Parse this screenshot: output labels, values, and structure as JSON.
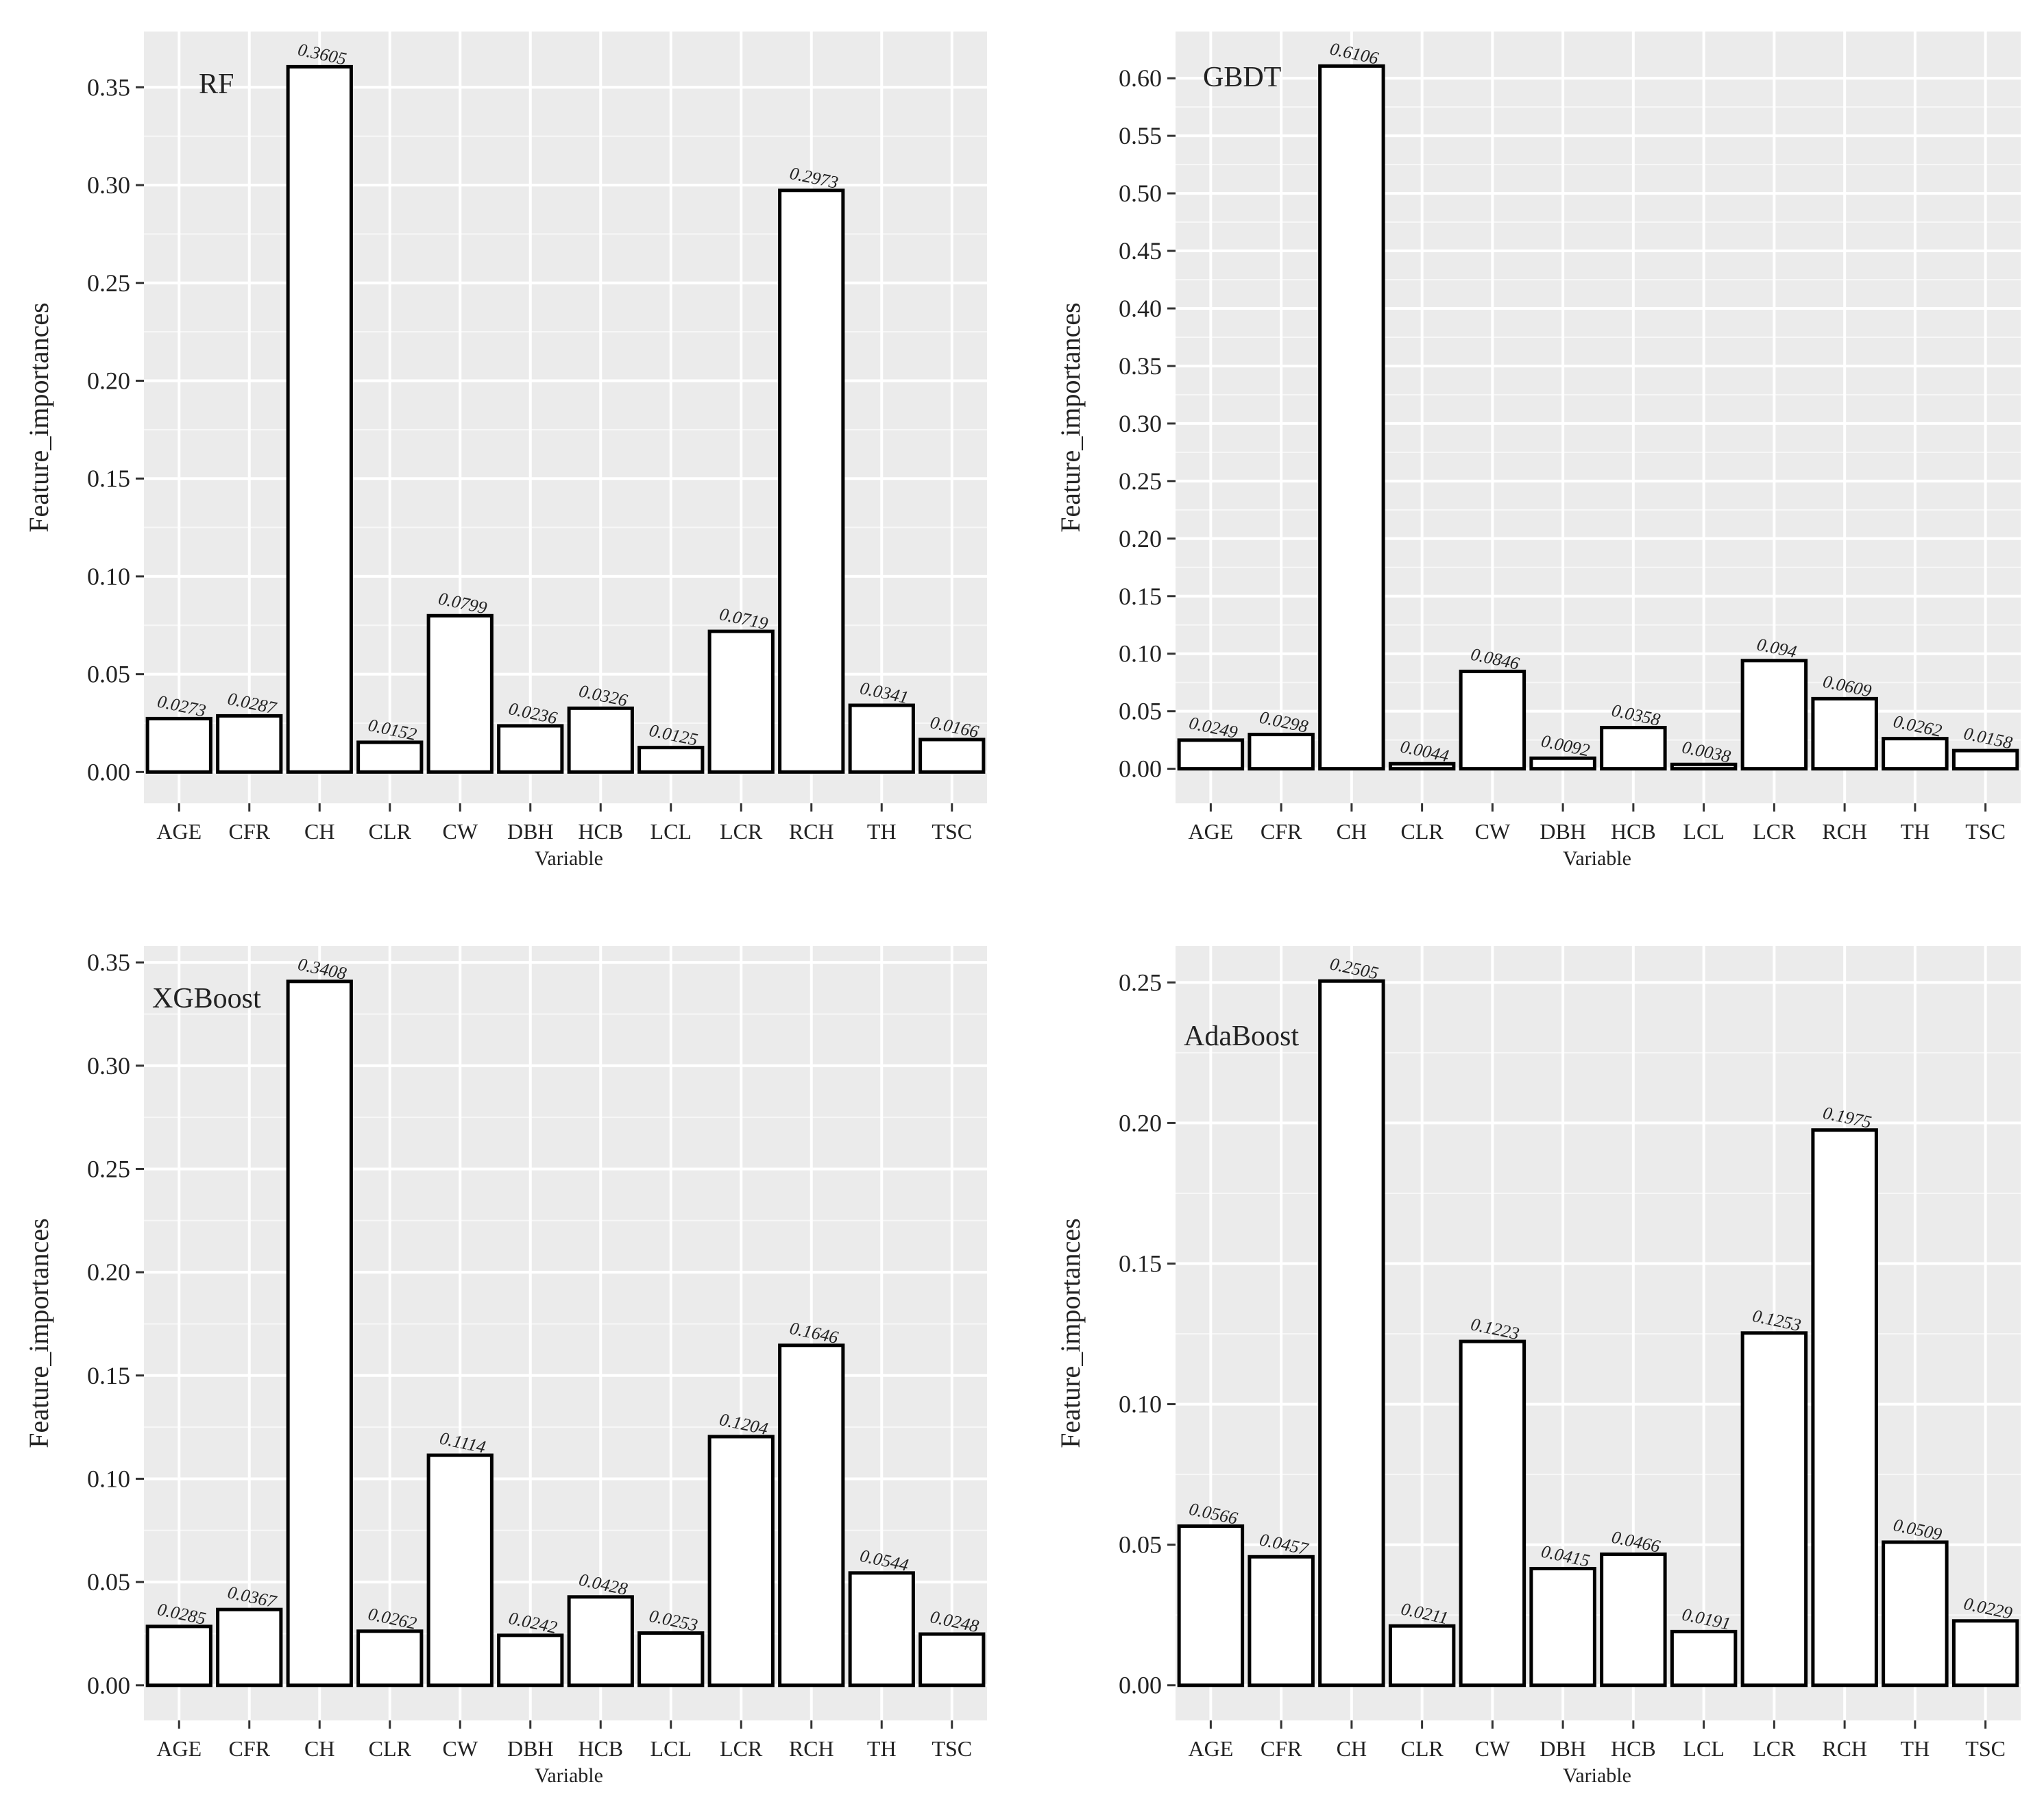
{
  "chart_data": [
    {
      "type": "bar",
      "title": "RF",
      "xlabel": "Variable",
      "ylabel": "Feature_importances",
      "categories": [
        "AGE",
        "CFR",
        "CH",
        "CLR",
        "CW",
        "DBH",
        "HCB",
        "LCL",
        "LCR",
        "RCH",
        "TH",
        "TSC"
      ],
      "values": [
        0.0273,
        0.0287,
        0.3605,
        0.0152,
        0.0799,
        0.0236,
        0.0326,
        0.0125,
        0.0719,
        0.2973,
        0.0341,
        0.0166
      ],
      "value_labels": [
        "0.0273",
        "0.0287",
        "0.3605",
        "0.0152",
        "0.0799",
        "0.0236",
        "0.0326",
        "0.0125",
        "0.0719",
        "0.2973",
        "0.0341",
        "0.0166"
      ],
      "ylim": [
        -0.016,
        0.3785
      ],
      "yticks": [
        0.0,
        0.05,
        0.1,
        0.15,
        0.2,
        0.25,
        0.3,
        0.35
      ],
      "ytick_labels": [
        "0.00",
        "0.05",
        "0.10",
        "0.15",
        "0.20",
        "0.25",
        "0.30",
        "0.35"
      ],
      "legend": "none",
      "grid": true
    },
    {
      "type": "bar",
      "title": "GBDT",
      "xlabel": "Variable",
      "ylabel": "Feature_importances",
      "categories": [
        "AGE",
        "CFR",
        "CH",
        "CLR",
        "CW",
        "DBH",
        "HCB",
        "LCL",
        "LCR",
        "RCH",
        "TH",
        "TSC"
      ],
      "values": [
        0.0249,
        0.0298,
        0.6106,
        0.0044,
        0.0846,
        0.0092,
        0.0358,
        0.0038,
        0.094,
        0.0609,
        0.0262,
        0.0158
      ],
      "value_labels": [
        "0.0249",
        "0.0298",
        "0.6106",
        "0.0044",
        "0.0846",
        "0.0092",
        "0.0358",
        "0.0038",
        "0.094",
        "0.0609",
        "0.0262",
        "0.0158"
      ],
      "ylim": [
        -0.03,
        0.6406
      ],
      "yticks": [
        0.0,
        0.05,
        0.1,
        0.15,
        0.2,
        0.25,
        0.3,
        0.35,
        0.4,
        0.45,
        0.5,
        0.55,
        0.6
      ],
      "ytick_labels": [
        "0.00",
        "0.05",
        "0.10",
        "0.15",
        "0.20",
        "0.25",
        "0.30",
        "0.35",
        "0.40",
        "0.45",
        "0.50",
        "0.55",
        "0.60"
      ],
      "legend": "none",
      "grid": true
    },
    {
      "type": "bar",
      "title": "XGBoost",
      "xlabel": "Variable",
      "ylabel": "Feature_importances",
      "categories": [
        "AGE",
        "CFR",
        "CH",
        "CLR",
        "CW",
        "DBH",
        "HCB",
        "LCL",
        "LCR",
        "RCH",
        "TH",
        "TSC"
      ],
      "values": [
        0.0285,
        0.0367,
        0.3408,
        0.0262,
        0.1114,
        0.0242,
        0.0428,
        0.0253,
        0.1204,
        0.1646,
        0.0544,
        0.0248
      ],
      "value_labels": [
        "0.0285",
        "0.0367",
        "0.3408",
        "0.0262",
        "0.1114",
        "0.0242",
        "0.0428",
        "0.0253",
        "0.1204",
        "0.1646",
        "0.0544",
        "0.0248"
      ],
      "ylim": [
        -0.017,
        0.358
      ],
      "yticks": [
        0.0,
        0.05,
        0.1,
        0.15,
        0.2,
        0.25,
        0.3,
        0.35
      ],
      "ytick_labels": [
        "0.00",
        "0.05",
        "0.10",
        "0.15",
        "0.20",
        "0.25",
        "0.30",
        "0.35"
      ],
      "legend": "none",
      "grid": true
    },
    {
      "type": "bar",
      "title": "AdaBoost",
      "xlabel": "Variable",
      "ylabel": "Feature_importances",
      "categories": [
        "AGE",
        "CFR",
        "CH",
        "CLR",
        "CW",
        "DBH",
        "HCB",
        "LCL",
        "LCR",
        "RCH",
        "TH",
        "TSC"
      ],
      "values": [
        0.0566,
        0.0457,
        0.2505,
        0.0211,
        0.1223,
        0.0415,
        0.0466,
        0.0191,
        0.1253,
        0.1975,
        0.0509,
        0.0229
      ],
      "value_labels": [
        "0.0566",
        "0.0457",
        "0.2505",
        "0.0211",
        "0.1223",
        "0.0415",
        "0.0466",
        "0.0191",
        "0.1253",
        "0.1975",
        "0.0509",
        "0.0229"
      ],
      "ylim": [
        -0.0125,
        0.263
      ],
      "yticks": [
        0.0,
        0.05,
        0.1,
        0.15,
        0.2,
        0.25
      ],
      "ytick_labels": [
        "0.00",
        "0.05",
        "0.10",
        "0.15",
        "0.20",
        "0.25"
      ],
      "legend": "none",
      "grid": true
    }
  ]
}
